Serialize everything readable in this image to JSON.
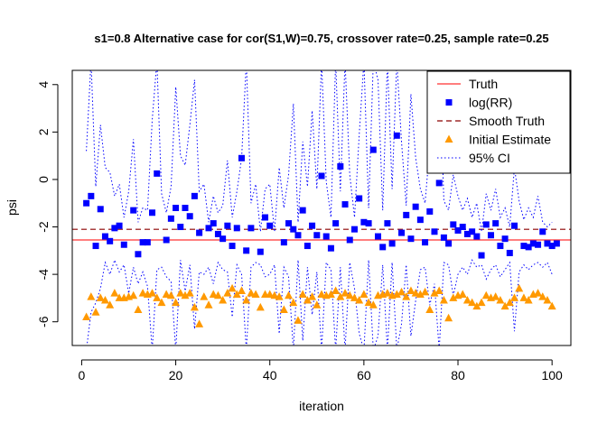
{
  "chart_data": {
    "type": "scatter",
    "title": "s1=0.8 Alternative case for cor(S1,W)=0.75, crossover rate=0.25, sample rate=0.25",
    "xlabel": "iteration",
    "ylabel": "psi",
    "xlim": [
      -2,
      104
    ],
    "ylim": [
      -7,
      4.6
    ],
    "x_ticks": [
      0,
      20,
      40,
      60,
      80,
      100
    ],
    "y_ticks": [
      -6,
      -4,
      -2,
      0,
      2,
      4
    ],
    "grid": false,
    "legend_position": "top-right",
    "legend": [
      {
        "label": "Truth",
        "style": "solid-line",
        "color": "#ff3030"
      },
      {
        "label": "log(RR)",
        "style": "square",
        "color": "#0000ff"
      },
      {
        "label": "Smooth Truth",
        "style": "dashed-line",
        "color": "#8b0000"
      },
      {
        "label": "Initial Estimate",
        "style": "triangle",
        "color": "#ff9900"
      },
      {
        "label": "95% CI",
        "style": "dotted-line",
        "color": "#0000ff"
      }
    ],
    "truth": -2.55,
    "smooth_truth": -2.1,
    "series": [
      {
        "name": "log(RR)",
        "color": "#0000ff",
        "marker": "square",
        "x": [
          1,
          2,
          3,
          4,
          5,
          6,
          7,
          8,
          9,
          11,
          12,
          13,
          14,
          15,
          16,
          18,
          19,
          20,
          21,
          22,
          23,
          24,
          25,
          27,
          28,
          29,
          30,
          31,
          32,
          33,
          34,
          35,
          36,
          38,
          39,
          40,
          43,
          44,
          45,
          46,
          47,
          48,
          49,
          50,
          51,
          52,
          53,
          54,
          55,
          56,
          57,
          58,
          59,
          60,
          61,
          62,
          63,
          64,
          65,
          66,
          67,
          68,
          69,
          70,
          71,
          72,
          73,
          74,
          75,
          76,
          77,
          78,
          79,
          80,
          81,
          82,
          83,
          84,
          85,
          86,
          87,
          88,
          89,
          90,
          91,
          92,
          94,
          95,
          96,
          97,
          98,
          99,
          100,
          101
        ],
        "y": [
          -1.0,
          -0.7,
          -2.8,
          -1.25,
          -2.4,
          -2.6,
          -2.05,
          -1.95,
          -2.75,
          -1.3,
          -3.15,
          -2.65,
          -2.65,
          -1.4,
          0.25,
          -2.55,
          -1.65,
          -1.2,
          -2.0,
          -1.2,
          -1.55,
          -0.7,
          -2.25,
          -2.05,
          -1.85,
          -2.3,
          -2.5,
          -1.95,
          -2.8,
          -2.05,
          0.9,
          -3.0,
          -2.05,
          -3.05,
          -1.6,
          -1.95,
          -2.65,
          -1.85,
          -2.1,
          -2.35,
          -1.3,
          -2.8,
          -1.95,
          -2.35,
          0.15,
          -2.4,
          -2.9,
          -1.85,
          0.55,
          -1.05,
          -2.55,
          -2.1,
          -0.8,
          -1.8,
          -1.85,
          1.25,
          -2.4,
          -2.85,
          -1.85,
          -2.7,
          1.85,
          -2.25,
          -1.5,
          -2.5,
          -1.15,
          -1.7,
          -2.65,
          -1.35,
          -2.2,
          -0.15,
          -2.45,
          -2.7,
          -1.9,
          -2.15,
          -2.0,
          -2.3,
          -2.2,
          -2.4,
          -3.2,
          -1.9,
          -2.35,
          -1.85,
          -2.8,
          -2.5,
          -3.1,
          -1.95,
          -2.8,
          -2.85,
          -2.7,
          -2.75,
          -2.2,
          -2.7,
          -2.8,
          -2.7
        ]
      },
      {
        "name": "Initial Estimate",
        "color": "#ff9900",
        "marker": "triangle",
        "x": [
          1,
          2,
          3,
          4,
          5,
          6,
          7,
          8,
          9,
          10,
          11,
          12,
          13,
          14,
          15,
          16,
          17,
          18,
          19,
          20,
          21,
          22,
          23,
          24,
          25,
          26,
          27,
          28,
          29,
          30,
          31,
          32,
          33,
          34,
          35,
          36,
          37,
          38,
          39,
          40,
          41,
          42,
          43,
          44,
          45,
          46,
          47,
          48,
          49,
          50,
          51,
          52,
          53,
          54,
          55,
          56,
          57,
          58,
          59,
          60,
          61,
          62,
          63,
          64,
          65,
          66,
          67,
          68,
          69,
          70,
          71,
          72,
          73,
          74,
          75,
          76,
          77,
          78,
          79,
          80,
          81,
          82,
          83,
          84,
          85,
          86,
          87,
          88,
          89,
          90,
          91,
          92,
          93,
          94,
          95,
          96,
          97,
          98,
          99,
          100
        ],
        "y": [
          -5.8,
          -4.95,
          -5.6,
          -5.0,
          -5.1,
          -5.3,
          -4.8,
          -5.0,
          -5.0,
          -4.95,
          -4.9,
          -5.5,
          -4.8,
          -4.85,
          -4.8,
          -5.0,
          -5.2,
          -4.85,
          -4.9,
          -5.2,
          -4.8,
          -4.9,
          -4.8,
          -5.4,
          -6.1,
          -4.95,
          -5.3,
          -4.85,
          -4.9,
          -5.1,
          -4.8,
          -4.6,
          -4.85,
          -4.7,
          -5.1,
          -4.8,
          -4.85,
          -5.4,
          -4.85,
          -4.85,
          -4.9,
          -4.95,
          -5.5,
          -4.9,
          -5.2,
          -5.95,
          -4.85,
          -5.1,
          -4.95,
          -5.3,
          -4.85,
          -4.9,
          -4.85,
          -4.7,
          -4.95,
          -4.8,
          -4.9,
          -5.0,
          -5.1,
          -4.85,
          -5.2,
          -5.3,
          -4.9,
          -4.85,
          -4.8,
          -4.9,
          -4.85,
          -4.75,
          -4.95,
          -4.7,
          -4.8,
          -4.85,
          -4.75,
          -5.5,
          -4.8,
          -4.7,
          -5.1,
          -5.85,
          -5.0,
          -4.9,
          -4.85,
          -5.1,
          -5.2,
          -5.35,
          -5.2,
          -4.9,
          -5.0,
          -4.95,
          -5.1,
          -5.35,
          -5.2,
          -5.0,
          -4.6,
          -5.0,
          -5.1,
          -4.85,
          -4.8,
          -4.95,
          -5.1,
          -5.35
        ]
      },
      {
        "name": "95% CI upper",
        "color": "#0000ff",
        "style": "dotted",
        "x": [
          1,
          2,
          3,
          4,
          5,
          6,
          7,
          8,
          9,
          10,
          11,
          12,
          13,
          14,
          15,
          16,
          17,
          18,
          19,
          20,
          21,
          22,
          23,
          24,
          25,
          26,
          27,
          28,
          29,
          30,
          31,
          32,
          33,
          34,
          35,
          36,
          37,
          38,
          39,
          40,
          41,
          42,
          43,
          44,
          45,
          46,
          47,
          48,
          49,
          50,
          51,
          52,
          53,
          54,
          55,
          56,
          57,
          58,
          59,
          60,
          61,
          62,
          63,
          64,
          65,
          66,
          67,
          68,
          69,
          70,
          71,
          72,
          73,
          74,
          75,
          76,
          77,
          78,
          79,
          80,
          81,
          82,
          83,
          84,
          85,
          86,
          87,
          88,
          89,
          90,
          91,
          92,
          93,
          94,
          95,
          96,
          97,
          98,
          99,
          100
        ],
        "y": [
          1.2,
          5.0,
          -0.3,
          2.3,
          0.5,
          0.3,
          -0.7,
          -0.2,
          -1.6,
          -0.5,
          1.7,
          -1.8,
          -1.2,
          -1.3,
          2.5,
          5.0,
          -0.6,
          -1.4,
          -0.3,
          3.9,
          1.0,
          0.6,
          2.3,
          4.2,
          -0.5,
          -0.2,
          -1.8,
          -0.7,
          -1.4,
          -1.1,
          0.8,
          -1.6,
          -0.5,
          0.9,
          5.0,
          -1.0,
          -0.2,
          -2.2,
          -0.4,
          -0.2,
          -2.2,
          0.5,
          -1.2,
          0.2,
          3.2,
          -1.8,
          1.6,
          -0.3,
          2.9,
          -0.4,
          5.0,
          -0.1,
          -1.6,
          5.0,
          -0.5,
          5.0,
          0.2,
          -1.6,
          1.9,
          5.0,
          -1.2,
          5.0,
          4.2,
          -1.3,
          5.0,
          -0.4,
          5.0,
          1.6,
          -1.1,
          3.6,
          0.9,
          -0.4,
          -1.0,
          1.4,
          0.6,
          5.0,
          -0.9,
          -1.3,
          0.2,
          -0.7,
          -1.3,
          -0.8,
          -1.6,
          -1.0,
          -2.2,
          -0.6,
          -1.3,
          -0.4,
          -1.6,
          -1.2,
          -2.0,
          0.5,
          -0.9,
          -1.7,
          -1.2,
          -1.6,
          -0.7,
          -1.8,
          -2.0,
          -1.8
        ]
      },
      {
        "name": "95% CI lower",
        "color": "#0000ff",
        "style": "dotted",
        "x": [
          1,
          2,
          3,
          4,
          5,
          6,
          7,
          8,
          9,
          10,
          11,
          12,
          13,
          14,
          15,
          16,
          17,
          18,
          19,
          20,
          21,
          22,
          23,
          24,
          25,
          26,
          27,
          28,
          29,
          30,
          31,
          32,
          33,
          34,
          35,
          36,
          37,
          38,
          39,
          40,
          41,
          42,
          43,
          44,
          45,
          46,
          47,
          48,
          49,
          50,
          51,
          52,
          53,
          54,
          55,
          56,
          57,
          58,
          59,
          60,
          61,
          62,
          63,
          64,
          65,
          66,
          67,
          68,
          69,
          70,
          71,
          72,
          73,
          74,
          75,
          76,
          77,
          78,
          79,
          80,
          81,
          82,
          83,
          84,
          85,
          86,
          87,
          88,
          89,
          90,
          91,
          92,
          93,
          94,
          95,
          96,
          97,
          98,
          99,
          100
        ],
        "y": [
          -7.2,
          -5.6,
          -5.2,
          -4.6,
          -3.5,
          -4.0,
          -3.4,
          -3.9,
          -3.6,
          -4.8,
          -3.7,
          -4.4,
          -3.9,
          -4.5,
          -7.2,
          -3.8,
          -3.7,
          -4.1,
          -4.3,
          -7.2,
          -3.4,
          -4.7,
          -3.6,
          -6.3,
          -3.9,
          -4.0,
          -3.7,
          -4.4,
          -3.5,
          -3.8,
          -3.9,
          -5.8,
          -3.6,
          -4.0,
          -7.2,
          -3.7,
          -3.5,
          -3.6,
          -4.1,
          -4.0,
          -3.6,
          -6.5,
          -3.7,
          -4.1,
          -7.2,
          -3.4,
          -6.8,
          -3.7,
          -5.7,
          -3.9,
          -7.2,
          -3.5,
          -3.8,
          -7.2,
          -3.7,
          -7.2,
          -3.5,
          -4.6,
          -6.5,
          -7.2,
          -3.4,
          -7.2,
          -6.6,
          -3.6,
          -7.2,
          -3.5,
          -7.2,
          -6.1,
          -3.6,
          -6.6,
          -5.1,
          -3.8,
          -3.7,
          -5.3,
          -4.4,
          -7.2,
          -3.5,
          -3.6,
          -4.9,
          -4.0,
          -3.7,
          -4.0,
          -3.4,
          -3.7,
          -3.6,
          -4.2,
          -3.8,
          -3.6,
          -4.1,
          -3.8,
          -3.5,
          -6.4,
          -3.9,
          -3.6,
          -3.8,
          -3.6,
          -3.5,
          -3.7,
          -3.5,
          -4.0
        ]
      }
    ]
  }
}
